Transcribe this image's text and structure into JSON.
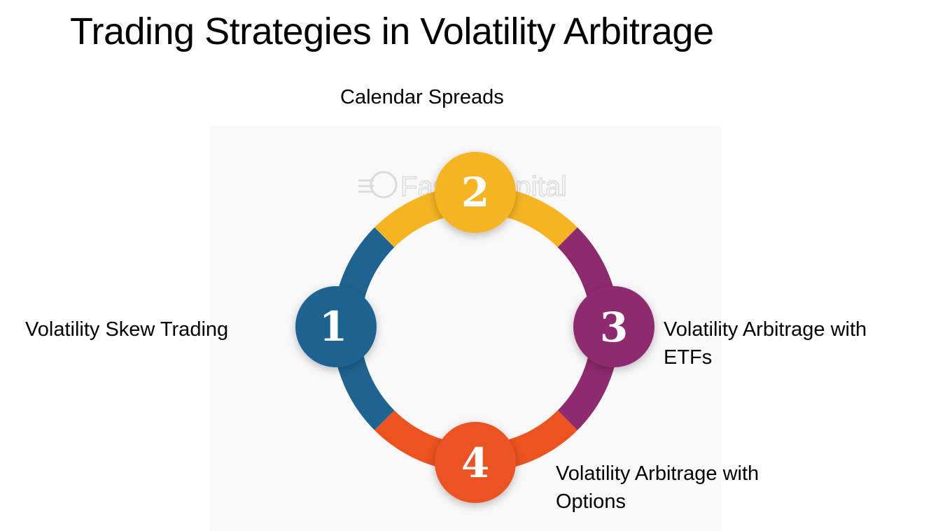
{
  "title": "Trading Strategies in Volatility Arbitrage",
  "watermark": "FasterCapital",
  "steps": [
    {
      "number": "1",
      "label": "Volatility Skew Trading",
      "color": "#1f6392"
    },
    {
      "number": "2",
      "label": "Calendar Spreads",
      "color": "#f5b523"
    },
    {
      "number": "3",
      "label": "Volatility Arbitrage with ETFs",
      "color": "#8e2a6e"
    },
    {
      "number": "4",
      "label": "Volatility Arbitrage with Options",
      "color": "#ec5320"
    }
  ]
}
